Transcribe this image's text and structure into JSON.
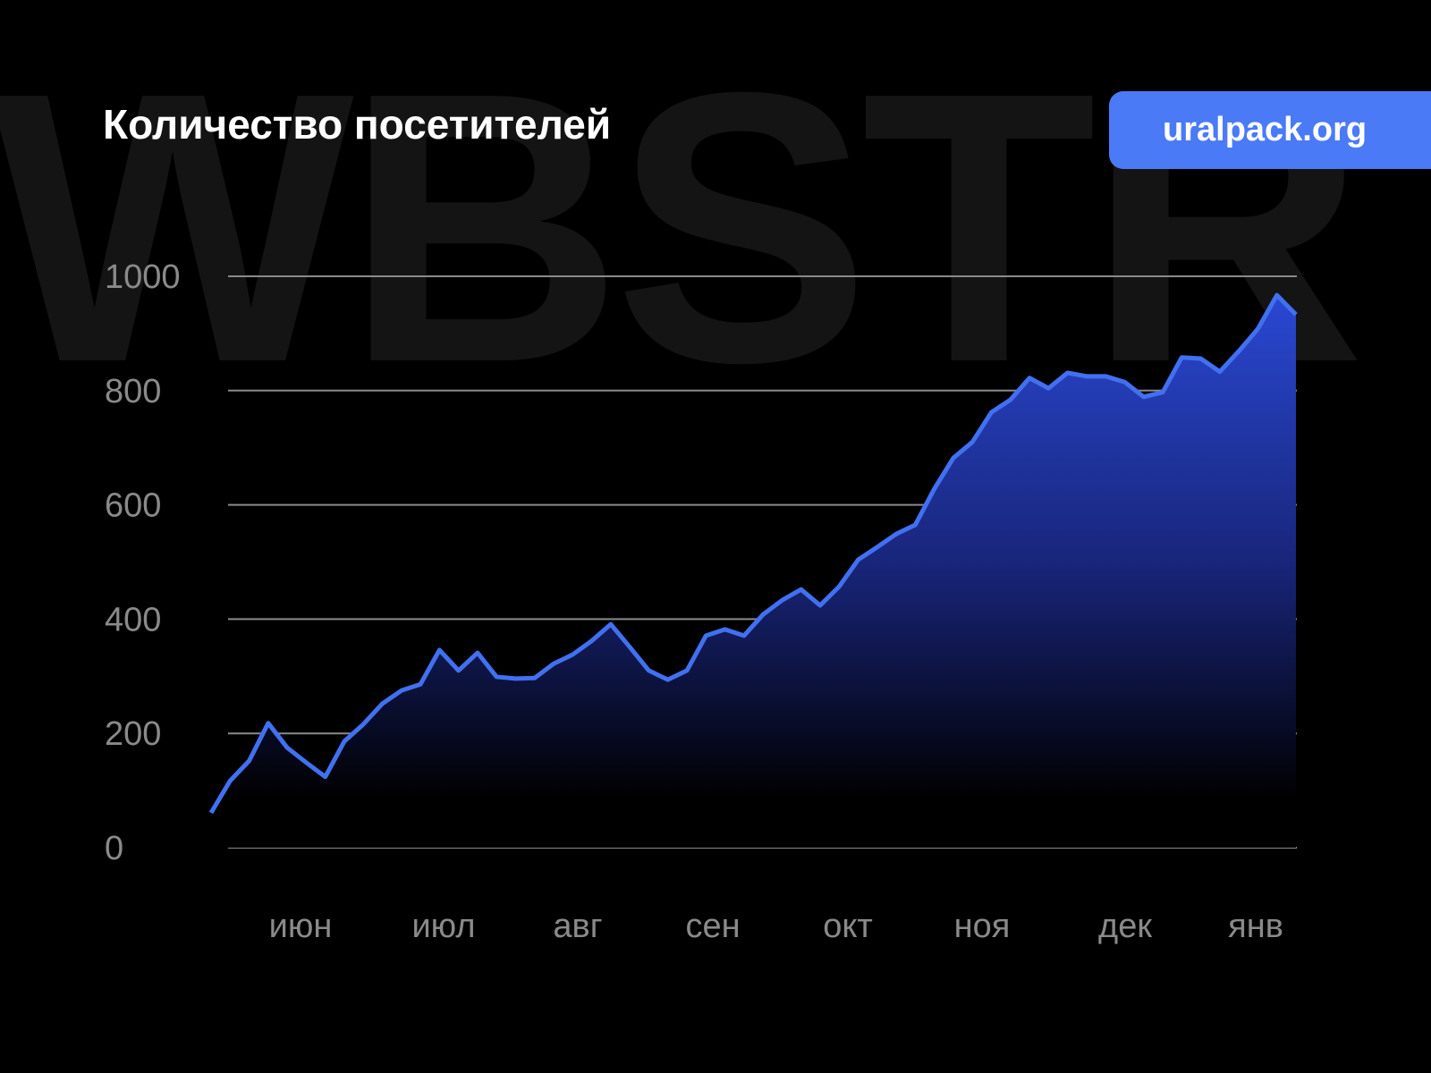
{
  "watermark": "WBSTR",
  "badge": "uralpack.org",
  "chart_data": {
    "type": "area",
    "title": "Количество посетителей",
    "xlabel": "",
    "ylabel": "",
    "ylim": [
      0,
      1000
    ],
    "yticks": [
      "0",
      "200",
      "400",
      "600",
      "800",
      "1000"
    ],
    "xticks": [
      "июн",
      "июл",
      "авг",
      "сен",
      "окт",
      "ноя",
      "дек",
      "янв"
    ],
    "grid": true,
    "colors": {
      "line": "#4170f0",
      "fill_top": "#2b4ad8",
      "background": "#000000",
      "badge": "#4a7af6"
    },
    "values": [
      61,
      117,
      152,
      218,
      175,
      149,
      124,
      186,
      216,
      252,
      275,
      286,
      346,
      310,
      341,
      299,
      296,
      297,
      322,
      338,
      362,
      391,
      351,
      310,
      294,
      310,
      371,
      382,
      371,
      408,
      433,
      452,
      424,
      457,
      504,
      526,
      549,
      565,
      628,
      682,
      710,
      762,
      784,
      822,
      804,
      831,
      825,
      825,
      815,
      789,
      797,
      858,
      856,
      833,
      869,
      908,
      967,
      933
    ]
  }
}
